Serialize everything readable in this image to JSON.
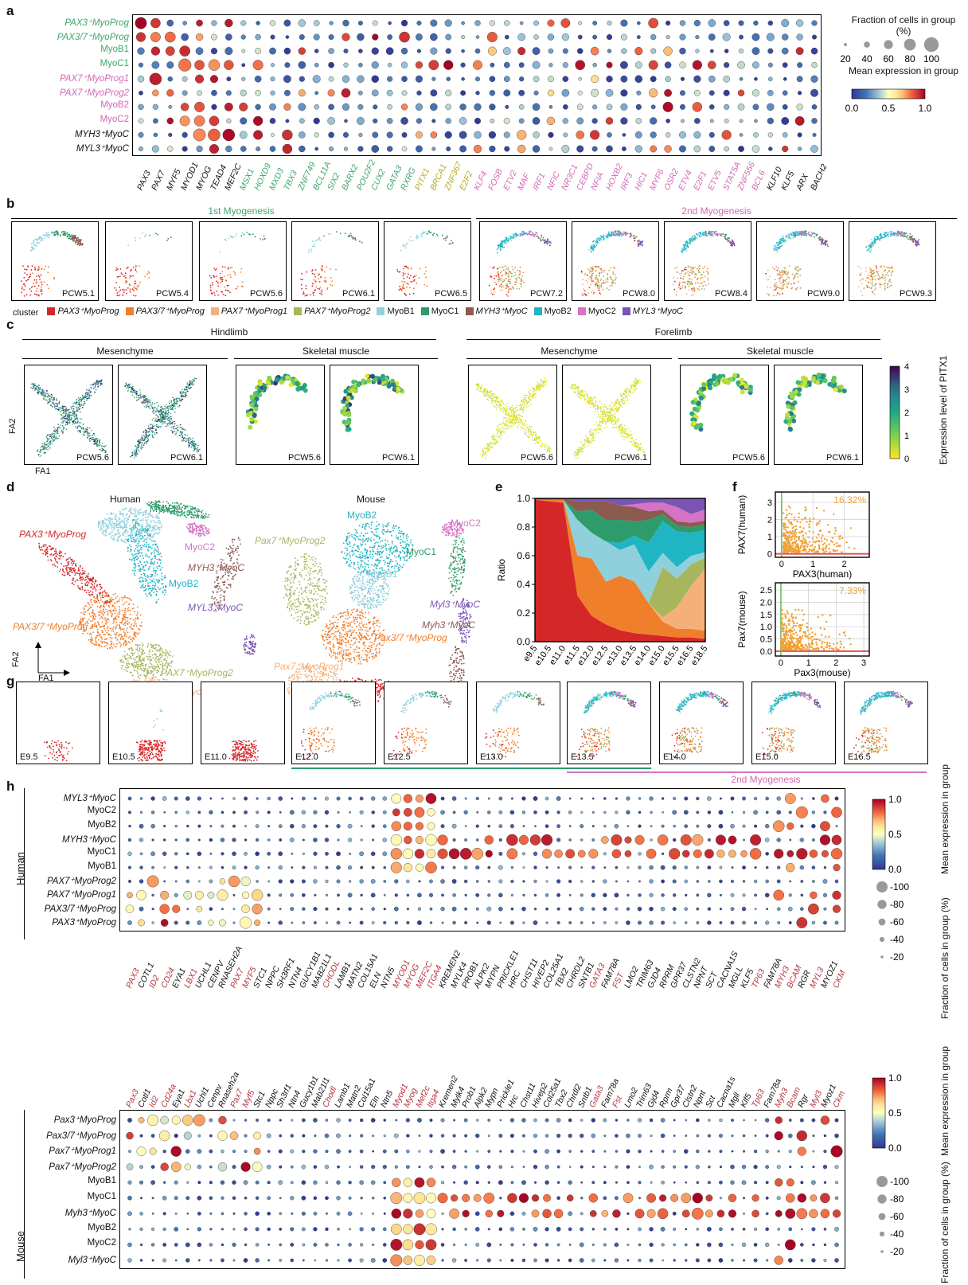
{
  "panels": {
    "a": "a",
    "b": "b",
    "c": "c",
    "d": "d",
    "e": "e",
    "f": "f",
    "g": "g",
    "h": "h"
  },
  "colors": {
    "pax3": "#d62728",
    "pax37": "#f07f2b",
    "pax7p1": "#f5b07a",
    "pax7p2": "#a7b55d",
    "myob1": "#8fd0dc",
    "myoc1": "#2e9b6b",
    "myh3": "#8c5a4f",
    "myob2": "#1fb5c3",
    "myoc2": "#d573c5",
    "myl3": "#7b55b5",
    "green_label": "#3fa56b",
    "pink_label": "#d069b6",
    "olive_label": "#b5a827",
    "red_gene": "#b5363d"
  },
  "panel_a": {
    "rows": [
      {
        "label": "PAX3⁺MyoProg",
        "color": "green"
      },
      {
        "label": "PAX3/7⁺MyoProg",
        "color": "green"
      },
      {
        "label": "MyoB1",
        "color": "green"
      },
      {
        "label": "MyoC1",
        "color": "green"
      },
      {
        "label": "PAX7⁺MyoProg1",
        "color": "pink"
      },
      {
        "label": "PAX7⁺MyoProg2",
        "color": "pink"
      },
      {
        "label": "MyoB2",
        "color": "pink"
      },
      {
        "label": "MyoC2",
        "color": "pink"
      },
      {
        "label": "MYH3⁺MyoC",
        "color": "black"
      },
      {
        "label": "MYL3⁺MyoC",
        "color": "black"
      }
    ],
    "genes": [
      {
        "g": "PAX3",
        "c": "black"
      },
      {
        "g": "PAX7",
        "c": "black"
      },
      {
        "g": "MYF5",
        "c": "black"
      },
      {
        "g": "MYOD1",
        "c": "black"
      },
      {
        "g": "MYOG",
        "c": "black"
      },
      {
        "g": "TEAD4",
        "c": "black"
      },
      {
        "g": "MEF2C",
        "c": "black"
      },
      {
        "g": "MSX1",
        "c": "green"
      },
      {
        "g": "HOXD9",
        "c": "green"
      },
      {
        "g": "MXD3",
        "c": "green"
      },
      {
        "g": "TBX3",
        "c": "green"
      },
      {
        "g": "ZNF749",
        "c": "green"
      },
      {
        "g": "BCL11A",
        "c": "green"
      },
      {
        "g": "SIX2",
        "c": "green"
      },
      {
        "g": "BARX2",
        "c": "green"
      },
      {
        "g": "POU2F2",
        "c": "green"
      },
      {
        "g": "CUX2",
        "c": "green"
      },
      {
        "g": "GATA3",
        "c": "green"
      },
      {
        "g": "RXRG",
        "c": "green"
      },
      {
        "g": "PITX1",
        "c": "olive"
      },
      {
        "g": "BRCA1",
        "c": "olive"
      },
      {
        "g": "ZNF367",
        "c": "olive"
      },
      {
        "g": "E2F2",
        "c": "olive"
      },
      {
        "g": "KLF4",
        "c": "pink"
      },
      {
        "g": "FOSB",
        "c": "pink"
      },
      {
        "g": "ETV2",
        "c": "pink"
      },
      {
        "g": "MAF",
        "c": "pink"
      },
      {
        "g": "IRF1",
        "c": "pink"
      },
      {
        "g": "NFIC",
        "c": "pink"
      },
      {
        "g": "NR3C1",
        "c": "pink"
      },
      {
        "g": "CEBPD",
        "c": "pink"
      },
      {
        "g": "NFIA",
        "c": "pink"
      },
      {
        "g": "HOXB2",
        "c": "pink"
      },
      {
        "g": "IRF3",
        "c": "pink"
      },
      {
        "g": "HIC1",
        "c": "pink"
      },
      {
        "g": "MYF6",
        "c": "pink"
      },
      {
        "g": "OSR2",
        "c": "pink"
      },
      {
        "g": "ETV4",
        "c": "pink"
      },
      {
        "g": "E2F1",
        "c": "pink"
      },
      {
        "g": "ETV5",
        "c": "pink"
      },
      {
        "g": "STAT5A",
        "c": "pink"
      },
      {
        "g": "ZNF556",
        "c": "pink"
      },
      {
        "g": "BCL6",
        "c": "pink"
      },
      {
        "g": "KLF10",
        "c": "black"
      },
      {
        "g": "KLF5",
        "c": "black"
      },
      {
        "g": "ARX",
        "c": "black"
      },
      {
        "g": "BACH2",
        "c": "black"
      }
    ],
    "size_legend_title": "Fraction of cells in group (%)",
    "size_ticks": [
      "20",
      "40",
      "60",
      "80",
      "100"
    ],
    "color_legend_title": "Mean expression in group",
    "color_ticks": [
      "0.0",
      "0.5",
      "1.0"
    ]
  },
  "panel_b": {
    "group1_title": "1st Myogenesis",
    "group2_title": "2nd Myogenesis",
    "stages": [
      "PCW5.1",
      "PCW5.4",
      "PCW5.6",
      "PCW6.1",
      "PCW6.5",
      "PCW7.2",
      "PCW8.0",
      "PCW8.4",
      "PCW9.0",
      "PCW9.3"
    ],
    "legend_title": "cluster",
    "legend": [
      {
        "name": "PAX3⁺MyoProg",
        "key": "pax3"
      },
      {
        "name": "PAX3/7⁺MyoProg",
        "key": "pax37"
      },
      {
        "name": "PAX7⁺MyoProg1",
        "key": "pax7p1"
      },
      {
        "name": "PAX7⁺MyoProg2",
        "key": "pax7p2"
      },
      {
        "name": "MyoB1",
        "key": "myob1"
      },
      {
        "name": "MyoC1",
        "key": "myoc1"
      },
      {
        "name": "MYH3⁺MyoC",
        "key": "myh3"
      },
      {
        "name": "MyoB2",
        "key": "myob2"
      },
      {
        "name": "MyoC2",
        "key": "myoc2"
      },
      {
        "name": "MYL3⁺MyoC",
        "key": "myl3"
      }
    ]
  },
  "panel_c": {
    "hindlimb": "Hindlimb",
    "forelimb": "Forelimb",
    "mesenchyme": "Mesenchyme",
    "skeletal": "Skeletal muscle",
    "stages": [
      "PCW5.6",
      "PCW6.1",
      "PCW5.6",
      "PCW6.1",
      "PCW5.6",
      "PCW6.1",
      "PCW5.6",
      "PCW6.1"
    ],
    "fa1": "FA1",
    "fa2": "FA2",
    "cbar_title": "Expression level of PITX1",
    "cbar_ticks": [
      "0",
      "1",
      "2",
      "3",
      "4"
    ]
  },
  "panel_d": {
    "human_title": "Human",
    "mouse_title": "Mouse",
    "human_labels": [
      "PAX3⁺MyoProg",
      "MyoB1",
      "MyoC1",
      "MyoC2",
      "MYH3⁺MyoC",
      "MyoB2",
      "MYL3⁺MyoC",
      "PAX3/7⁺MyoProg",
      "PAX7⁺MyoProg2",
      "PAX7+MyoProg1"
    ],
    "mouse_labels": [
      "MyoB2",
      "MyoC2",
      "MyoC1",
      "Pax7⁺MyoProg2",
      "MyoB1",
      "Myl3⁺MyoC",
      "Myh3⁺MyoC",
      "Pax3/7⁺MyoProg",
      "Pax7⁺MyoProg1",
      "Pax3⁺MyoProg"
    ],
    "fa1": "FA1",
    "fa2": "FA2"
  },
  "chart_data": [
    {
      "type": "area",
      "title": "",
      "xlabel": "",
      "ylabel": "Ratio",
      "ylim": [
        0,
        1
      ],
      "y_ticks": [
        "0.0",
        "0.2",
        "0.4",
        "0.6",
        "0.8",
        "1.0"
      ],
      "categories": [
        "e9.5",
        "e10.5",
        "e11.0",
        "e11.5",
        "e12.0",
        "e12.5",
        "e13.0",
        "e13.5",
        "e14.0",
        "e15.0",
        "e15.5",
        "e16.5",
        "e18.5"
      ],
      "series": [
        {
          "key": "pax3",
          "values": [
            0.99,
            0.98,
            0.97,
            0.32,
            0.18,
            0.12,
            0.08,
            0.06,
            0.05,
            0.04,
            0.03,
            0.03,
            0.02
          ]
        },
        {
          "key": "pax37",
          "values": [
            0.0,
            0.01,
            0.02,
            0.28,
            0.4,
            0.3,
            0.38,
            0.36,
            0.22,
            0.1,
            0.06,
            0.06,
            0.06
          ]
        },
        {
          "key": "pax7p1",
          "values": [
            0.0,
            0.0,
            0.0,
            0.0,
            0.0,
            0.0,
            0.0,
            0.0,
            0.0,
            0.03,
            0.15,
            0.3,
            0.45
          ]
        },
        {
          "key": "pax7p2",
          "values": [
            0.0,
            0.0,
            0.0,
            0.0,
            0.0,
            0.0,
            0.0,
            0.0,
            0.0,
            0.35,
            0.2,
            0.15,
            0.08
          ]
        },
        {
          "key": "myob1",
          "values": [
            0.0,
            0.0,
            0.0,
            0.25,
            0.18,
            0.28,
            0.18,
            0.26,
            0.22,
            0.1,
            0.08,
            0.06,
            0.04
          ]
        },
        {
          "key": "myob2",
          "values": [
            0.0,
            0.0,
            0.0,
            0.0,
            0.0,
            0.0,
            0.05,
            0.06,
            0.2,
            0.22,
            0.25,
            0.16,
            0.16
          ]
        },
        {
          "key": "myoc1",
          "values": [
            0.0,
            0.0,
            0.0,
            0.06,
            0.16,
            0.15,
            0.16,
            0.1,
            0.16,
            0.05,
            0.04,
            0.04,
            0.04
          ]
        },
        {
          "key": "myh3",
          "values": [
            0.01,
            0.01,
            0.01,
            0.07,
            0.06,
            0.13,
            0.1,
            0.1,
            0.06,
            0.03,
            0.03,
            0.03,
            0.03
          ]
        },
        {
          "key": "myoc2",
          "values": [
            0.0,
            0.0,
            0.0,
            0.0,
            0.0,
            0.0,
            0.0,
            0.02,
            0.06,
            0.05,
            0.1,
            0.06,
            0.08
          ]
        },
        {
          "key": "myl3",
          "values": [
            0.0,
            0.0,
            0.0,
            0.02,
            0.02,
            0.02,
            0.05,
            0.04,
            0.03,
            0.03,
            0.06,
            0.11,
            0.08
          ]
        }
      ]
    },
    {
      "type": "scatter",
      "title": "",
      "xlabel": "PAX3(human)",
      "ylabel": "PAX7(human)",
      "xlim": [
        -0.2,
        2.8
      ],
      "ylim": [
        -0.2,
        3.6
      ],
      "x_ticks": [
        "0",
        "1",
        "2"
      ],
      "y_ticks": [
        "0",
        "1",
        "2",
        "3"
      ],
      "annotation": "16.32%"
    },
    {
      "type": "scatter",
      "title": "",
      "xlabel": "Pax3(mouse)",
      "ylabel": "Pax7(mouse)",
      "xlim": [
        -0.2,
        3.2
      ],
      "ylim": [
        -0.2,
        2.8
      ],
      "x_ticks": [
        "0",
        "1",
        "2",
        "3"
      ],
      "y_ticks": [
        "0.0",
        "0.5",
        "1.0",
        "1.5",
        "2.0",
        "2.5"
      ],
      "annotation": "7.33%"
    }
  ],
  "panel_g": {
    "stages": [
      "E9.5",
      "E10.5",
      "E11.0",
      "E12.0",
      "E12.5",
      "E13.0",
      "E13.5",
      "E14.0",
      "E15.0",
      "E16.5"
    ],
    "second_myogenesis": "2nd Myogenesis"
  },
  "panel_h": {
    "human_side": "Human",
    "mouse_side": "Mouse",
    "human_rows": [
      "MYL3⁺MyoC",
      "MyoC2",
      "MyoB2",
      "MYH3⁺MyoC",
      "MyoC1",
      "MyoB1",
      "PAX7⁺MyoProg2",
      "PAX7⁺MyoProg1",
      "PAX3/7⁺MyoProg",
      "PAX3⁺MyoProg"
    ],
    "human_genes": [
      {
        "g": "PAX3",
        "r": true
      },
      {
        "g": "COTL1",
        "r": false
      },
      {
        "g": "ID2",
        "r": true
      },
      {
        "g": "CD24",
        "r": true
      },
      {
        "g": "EYA1",
        "r": false
      },
      {
        "g": "LBX1",
        "r": true
      },
      {
        "g": "UCHL1",
        "r": false
      },
      {
        "g": "CENPV",
        "r": false
      },
      {
        "g": "RNASEH2A",
        "r": false
      },
      {
        "g": "PAX7",
        "r": true
      },
      {
        "g": "MYF5",
        "r": true
      },
      {
        "g": "STC1",
        "r": false
      },
      {
        "g": "NPPC",
        "r": false
      },
      {
        "g": "SH3RF1",
        "r": false
      },
      {
        "g": "NTN4",
        "r": false
      },
      {
        "g": "GUCY1B1",
        "r": false
      },
      {
        "g": "MAB21L1",
        "r": false
      },
      {
        "g": "CHODL",
        "r": true
      },
      {
        "g": "LAMB1",
        "r": false
      },
      {
        "g": "MATN2",
        "r": false
      },
      {
        "g": "COL15A1",
        "r": false
      },
      {
        "g": "ELN",
        "r": false
      },
      {
        "g": "NTN5",
        "r": false
      },
      {
        "g": "MYOD1",
        "r": true
      },
      {
        "g": "MYOG",
        "r": true
      },
      {
        "g": "MEF2C",
        "r": true
      },
      {
        "g": "ITGA4",
        "r": true
      },
      {
        "g": "KREMEN2",
        "r": false
      },
      {
        "g": "MYLK4",
        "r": false
      },
      {
        "g": "PROB1",
        "r": false
      },
      {
        "g": "ALPK2",
        "r": false
      },
      {
        "g": "MYPN",
        "r": false
      },
      {
        "g": "PRICKLE1",
        "r": false
      },
      {
        "g": "HRC",
        "r": false
      },
      {
        "g": "CHST11",
        "r": false
      },
      {
        "g": "HIVEP2",
        "r": false
      },
      {
        "g": "COL25A1",
        "r": false
      },
      {
        "g": "TBX2",
        "r": false
      },
      {
        "g": "CHRDL2",
        "r": false
      },
      {
        "g": "SNTB1",
        "r": false
      },
      {
        "g": "GATA3",
        "r": true
      },
      {
        "g": "FAM78A",
        "r": false
      },
      {
        "g": "FST",
        "r": true
      },
      {
        "g": "LMO2",
        "r": false
      },
      {
        "g": "TRIM63",
        "r": false
      },
      {
        "g": "GJD4",
        "r": false
      },
      {
        "g": "RPRM",
        "r": false
      },
      {
        "g": "GPR37",
        "r": false
      },
      {
        "g": "CLSTN2",
        "r": false
      },
      {
        "g": "NPNT",
        "r": false
      },
      {
        "g": "SCT",
        "r": false
      },
      {
        "g": "CACNA1S",
        "r": false
      },
      {
        "g": "MGLL",
        "r": false
      },
      {
        "g": "KLF5",
        "r": false
      },
      {
        "g": "TP63",
        "r": true
      },
      {
        "g": "FAM78A",
        "r": false
      },
      {
        "g": "MYH3",
        "r": true
      },
      {
        "g": "BCAM",
        "r": true
      },
      {
        "g": "RGR",
        "r": false
      },
      {
        "g": "MYL3",
        "r": true
      },
      {
        "g": "MYOZ1",
        "r": false
      },
      {
        "g": "CKM",
        "r": true
      }
    ],
    "mouse_rows": [
      "Pax3⁺MyoProg",
      "Pax3/7⁺MyoProg",
      "Pax7⁺MyoProg1",
      "Pax7⁺MyoProg2",
      "MyoB1",
      "MyoC1",
      "Myh3⁺MyoC",
      "MyoB2",
      "MyoC2",
      "Myl3⁺MyoC"
    ],
    "mouse_genes": [
      {
        "g": "Pax3",
        "r": true
      },
      {
        "g": "Cotl1",
        "r": false
      },
      {
        "g": "Id2",
        "r": true
      },
      {
        "g": "Cd24a",
        "r": true
      },
      {
        "g": "Eya1",
        "r": false
      },
      {
        "g": "Lbx1",
        "r": true
      },
      {
        "g": "Uchl1",
        "r": false
      },
      {
        "g": "Cenpv",
        "r": false
      },
      {
        "g": "Rnaseh2a",
        "r": false
      },
      {
        "g": "Pax7",
        "r": true
      },
      {
        "g": "Myf5",
        "r": true
      },
      {
        "g": "Stc1",
        "r": false
      },
      {
        "g": "Nppc",
        "r": false
      },
      {
        "g": "Sh3rf1",
        "r": false
      },
      {
        "g": "Ntn4",
        "r": false
      },
      {
        "g": "Gucy1b1",
        "r": false
      },
      {
        "g": "Mab21l1",
        "r": false
      },
      {
        "g": "Chodl",
        "r": true
      },
      {
        "g": "Lamb1",
        "r": false
      },
      {
        "g": "Matn2",
        "r": false
      },
      {
        "g": "Col15a1",
        "r": false
      },
      {
        "g": "Eln",
        "r": false
      },
      {
        "g": "Ntn5",
        "r": false
      },
      {
        "g": "Myod1",
        "r": true
      },
      {
        "g": "Myog",
        "r": true
      },
      {
        "g": "Mef2c",
        "r": true
      },
      {
        "g": "Itga4",
        "r": true
      },
      {
        "g": "Kremen2",
        "r": false
      },
      {
        "g": "Mylk4",
        "r": false
      },
      {
        "g": "Prob1",
        "r": false
      },
      {
        "g": "Alpk2",
        "r": false
      },
      {
        "g": "Mypn",
        "r": false
      },
      {
        "g": "Prickle1",
        "r": false
      },
      {
        "g": "Hrc",
        "r": false
      },
      {
        "g": "Chst11",
        "r": false
      },
      {
        "g": "Hivep2",
        "r": false
      },
      {
        "g": "Col25a1",
        "r": false
      },
      {
        "g": "Tbx2",
        "r": false
      },
      {
        "g": "Chrdl2",
        "r": false
      },
      {
        "g": "Sntb1",
        "r": false
      },
      {
        "g": "Gata3",
        "r": true
      },
      {
        "g": "Fam78a",
        "r": false
      },
      {
        "g": "Fst",
        "r": true
      },
      {
        "g": "Lmo2",
        "r": false
      },
      {
        "g": "Trim63",
        "r": false
      },
      {
        "g": "Gjd4",
        "r": false
      },
      {
        "g": "Rprm",
        "r": false
      },
      {
        "g": "Gpr37",
        "r": false
      },
      {
        "g": "Clstn2",
        "r": false
      },
      {
        "g": "Npnt",
        "r": false
      },
      {
        "g": "Sct",
        "r": false
      },
      {
        "g": "Cacna1s",
        "r": false
      },
      {
        "g": "Mgll",
        "r": false
      },
      {
        "g": "Klf5",
        "r": false
      },
      {
        "g": "Tp63",
        "r": true
      },
      {
        "g": "Fam78a",
        "r": false
      },
      {
        "g": "Myh3",
        "r": true
      },
      {
        "g": "Bcam",
        "r": true
      },
      {
        "g": "Rgr",
        "r": false
      },
      {
        "g": "Myl3",
        "r": true
      },
      {
        "g": "Myoz1",
        "r": false
      },
      {
        "g": "Ckm",
        "r": true
      }
    ],
    "color_legend_title": "Mean expression in group",
    "color_ticks": [
      "1.0",
      "0.5",
      "0.0"
    ],
    "size_legend_title": "Fraction of cells in group (%)",
    "size_ticks": [
      "-100",
      "-80",
      "-60",
      "-40",
      "-20"
    ]
  }
}
